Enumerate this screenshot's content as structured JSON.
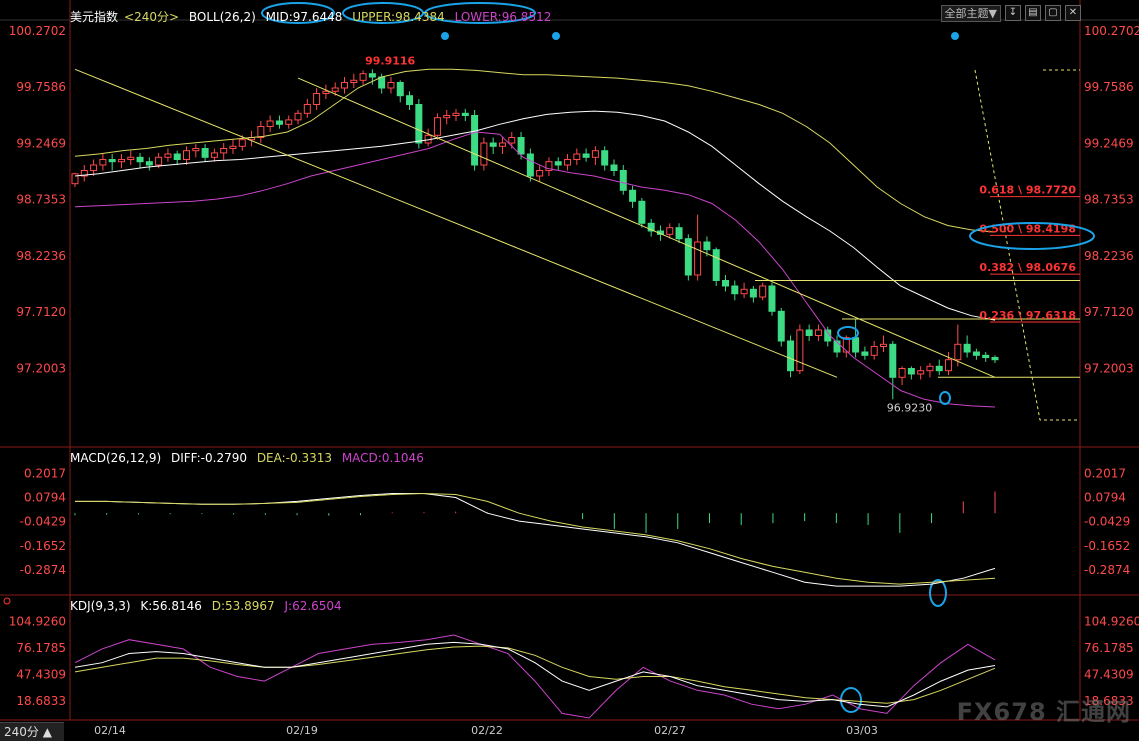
{
  "header": {
    "main": {
      "name": "美元指数",
      "period": "<240分>",
      "indicator": "BOLL(26,2)",
      "mid": "MID:97.6448",
      "upper": "UPPER:98.4384",
      "lower": "LOWER:96.8512"
    },
    "macd": {
      "name": "MACD(26,12,9)",
      "diff": "DIFF:-0.2790",
      "dea": "DEA:-0.3313",
      "macd": "MACD:0.1046"
    },
    "kdj": {
      "name": "KDJ(9,3,3)",
      "k": "K:56.8146",
      "d": "D:53.8967",
      "j": "J:62.6504"
    }
  },
  "toolbar": {
    "theme_label": "全部主题▼",
    "icons": [
      "↧",
      "▤",
      "▢",
      "✕"
    ]
  },
  "period_label": "240分 ▲",
  "watermark": "FX678 汇通网",
  "colors": {
    "up": "#ff4a4a",
    "down": "#3ddc84",
    "mid": "#ffffff",
    "upper": "#d8d860",
    "lower": "#cc44cc",
    "annot": "#ff3333",
    "ellipse": "#1aa3e8",
    "axis": "#ff4a4a",
    "grid": "#8b1a1a"
  },
  "chart_data": [
    {
      "type": "candlestick",
      "title": "美元指数 240分 BOLL(26,2)",
      "x_labels": [
        "02/14",
        "02/19",
        "02/22",
        "02/27",
        "03/03"
      ],
      "y_ticks": [
        "100.2702",
        "99.7586",
        "99.2469",
        "98.7353",
        "98.2236",
        "97.7120",
        "97.2003"
      ],
      "ylim": [
        96.55,
        100.35
      ],
      "candles": [
        [
          98.88,
          98.97,
          98.85,
          98.98
        ],
        [
          98.95,
          99.0,
          98.9,
          99.05
        ],
        [
          99.0,
          99.05,
          98.95,
          99.1
        ],
        [
          99.05,
          99.1,
          99.0,
          99.15
        ],
        [
          99.1,
          99.08,
          99.0,
          99.15
        ],
        [
          99.08,
          99.1,
          99.02,
          99.15
        ],
        [
          99.1,
          99.12,
          99.05,
          99.18
        ],
        [
          99.12,
          99.08,
          99.02,
          99.16
        ],
        [
          99.08,
          99.05,
          99.0,
          99.12
        ],
        [
          99.05,
          99.12,
          99.02,
          99.16
        ],
        [
          99.12,
          99.15,
          99.08,
          99.2
        ],
        [
          99.15,
          99.1,
          99.05,
          99.18
        ],
        [
          99.1,
          99.18,
          99.05,
          99.22
        ],
        [
          99.18,
          99.2,
          99.12,
          99.24
        ],
        [
          99.2,
          99.12,
          99.08,
          99.24
        ],
        [
          99.12,
          99.16,
          99.08,
          99.2
        ],
        [
          99.16,
          99.2,
          99.1,
          99.25
        ],
        [
          99.2,
          99.22,
          99.15,
          99.28
        ],
        [
          99.22,
          99.28,
          99.18,
          99.32
        ],
        [
          99.28,
          99.3,
          99.22,
          99.36
        ],
        [
          99.3,
          99.4,
          99.25,
          99.45
        ],
        [
          99.4,
          99.45,
          99.35,
          99.5
        ],
        [
          99.45,
          99.42,
          99.38,
          99.5
        ],
        [
          99.42,
          99.46,
          99.38,
          99.5
        ],
        [
          99.46,
          99.52,
          99.42,
          99.55
        ],
        [
          99.52,
          99.6,
          99.48,
          99.65
        ],
        [
          99.6,
          99.7,
          99.55,
          99.75
        ],
        [
          99.7,
          99.72,
          99.65,
          99.78
        ],
        [
          99.72,
          99.75,
          99.68,
          99.8
        ],
        [
          99.75,
          99.8,
          99.7,
          99.85
        ],
        [
          99.8,
          99.82,
          99.75,
          99.88
        ],
        [
          99.82,
          99.88,
          99.78,
          99.91
        ],
        [
          99.88,
          99.85,
          99.78,
          99.92
        ],
        [
          99.85,
          99.75,
          99.7,
          99.88
        ],
        [
          99.75,
          99.8,
          99.7,
          99.85
        ],
        [
          99.8,
          99.68,
          99.62,
          99.82
        ],
        [
          99.68,
          99.6,
          99.55,
          99.72
        ],
        [
          99.6,
          99.25,
          99.2,
          99.65
        ],
        [
          99.25,
          99.32,
          99.22,
          99.38
        ],
        [
          99.32,
          99.48,
          99.28,
          99.52
        ],
        [
          99.48,
          99.5,
          99.42,
          99.55
        ],
        [
          99.5,
          99.52,
          99.45,
          99.56
        ],
        [
          99.52,
          99.5,
          99.45,
          99.56
        ],
        [
          99.5,
          99.05,
          99.0,
          99.55
        ],
        [
          99.05,
          99.25,
          99.0,
          99.3
        ],
        [
          99.25,
          99.22,
          99.15,
          99.3
        ],
        [
          99.22,
          99.25,
          99.15,
          99.3
        ],
        [
          99.25,
          99.3,
          99.2,
          99.35
        ],
        [
          99.3,
          99.15,
          99.1,
          99.35
        ],
        [
          99.15,
          98.95,
          98.9,
          99.2
        ],
        [
          98.95,
          99.0,
          98.9,
          99.05
        ],
        [
          99.0,
          99.08,
          98.95,
          99.12
        ],
        [
          99.08,
          99.05,
          99.0,
          99.12
        ],
        [
          99.05,
          99.1,
          99.0,
          99.15
        ],
        [
          99.1,
          99.15,
          99.05,
          99.2
        ],
        [
          99.15,
          99.12,
          99.08,
          99.2
        ],
        [
          99.12,
          99.18,
          99.05,
          99.22
        ],
        [
          99.18,
          99.05,
          99.0,
          99.22
        ],
        [
          99.05,
          99.0,
          98.95,
          99.1
        ],
        [
          99.0,
          98.82,
          98.78,
          99.05
        ],
        [
          98.82,
          98.72,
          98.66,
          98.86
        ],
        [
          98.72,
          98.52,
          98.48,
          98.75
        ],
        [
          98.52,
          98.45,
          98.4,
          98.56
        ],
        [
          98.45,
          98.42,
          98.36,
          98.5
        ],
        [
          98.42,
          98.48,
          98.38,
          98.52
        ],
        [
          98.48,
          98.38,
          98.34,
          98.52
        ],
        [
          98.38,
          98.05,
          98.0,
          98.42
        ],
        [
          98.05,
          98.35,
          98.0,
          98.6
        ],
        [
          98.35,
          98.28,
          98.22,
          98.4
        ],
        [
          98.28,
          98.0,
          97.95,
          98.3
        ],
        [
          98.0,
          97.95,
          97.9,
          98.05
        ],
        [
          97.95,
          97.88,
          97.82,
          98.0
        ],
        [
          97.88,
          97.92,
          97.84,
          97.98
        ],
        [
          97.92,
          97.85,
          97.8,
          97.95
        ],
        [
          97.85,
          97.95,
          97.82,
          97.98
        ],
        [
          97.95,
          97.72,
          97.68,
          97.98
        ],
        [
          97.72,
          97.45,
          97.4,
          97.75
        ],
        [
          97.45,
          97.18,
          97.12,
          97.5
        ],
        [
          97.18,
          97.55,
          97.15,
          97.6
        ],
        [
          97.55,
          97.5,
          97.45,
          97.6
        ],
        [
          97.5,
          97.55,
          97.45,
          97.6
        ],
        [
          97.55,
          97.45,
          97.4,
          97.58
        ],
        [
          97.45,
          97.35,
          97.3,
          97.5
        ],
        [
          97.35,
          97.48,
          97.3,
          97.5
        ],
        [
          97.48,
          97.35,
          97.3,
          97.65
        ],
        [
          97.35,
          97.32,
          97.28,
          97.4
        ],
        [
          97.32,
          97.4,
          97.28,
          97.45
        ],
        [
          97.4,
          97.42,
          97.35,
          97.5
        ],
        [
          97.42,
          97.12,
          96.92,
          97.45
        ],
        [
          97.12,
          97.2,
          97.05,
          97.22
        ],
        [
          97.2,
          97.15,
          97.1,
          97.22
        ],
        [
          97.15,
          97.18,
          97.1,
          97.22
        ],
        [
          97.18,
          97.22,
          97.12,
          97.25
        ],
        [
          97.22,
          97.18,
          97.14,
          97.28
        ],
        [
          97.18,
          97.28,
          97.14,
          97.35
        ],
        [
          97.28,
          97.42,
          97.22,
          97.6
        ],
        [
          97.42,
          97.35,
          97.3,
          97.5
        ],
        [
          97.35,
          97.32,
          97.28,
          97.38
        ],
        [
          97.32,
          97.3,
          97.26,
          97.35
        ],
        [
          97.3,
          97.28,
          97.25,
          97.32
        ]
      ],
      "boll": {
        "mid": [
          98.95,
          98.97,
          99.0,
          99.03,
          99.05,
          99.07,
          99.09,
          99.1,
          99.12,
          99.14,
          99.16,
          99.18,
          99.2,
          99.22,
          99.25,
          99.28,
          99.32,
          99.36,
          99.42,
          99.47,
          99.51,
          99.53,
          99.54,
          99.53,
          99.5,
          99.45,
          99.35,
          99.22,
          99.05,
          98.88,
          98.72,
          98.58,
          98.45,
          98.3,
          98.12,
          97.95,
          97.85,
          97.75,
          97.68,
          97.64
        ],
        "upper": [
          99.13,
          99.15,
          99.18,
          99.2,
          99.23,
          99.25,
          99.27,
          99.29,
          99.31,
          99.35,
          99.45,
          99.6,
          99.75,
          99.85,
          99.9,
          99.92,
          99.92,
          99.91,
          99.89,
          99.87,
          99.87,
          99.86,
          99.85,
          99.84,
          99.82,
          99.8,
          99.77,
          99.72,
          99.66,
          99.6,
          99.52,
          99.4,
          99.25,
          99.05,
          98.85,
          98.7,
          98.58,
          98.5,
          98.46,
          98.44
        ],
        "lower": [
          98.67,
          98.68,
          98.69,
          98.7,
          98.71,
          98.72,
          98.74,
          98.77,
          98.82,
          98.88,
          98.95,
          99.0,
          99.05,
          99.1,
          99.15,
          99.2,
          99.28,
          99.35,
          99.33,
          99.12,
          99.02,
          98.98,
          98.95,
          98.9,
          98.85,
          98.82,
          98.78,
          98.7,
          98.55,
          98.35,
          98.1,
          97.8,
          97.5,
          97.3,
          97.15,
          97.0,
          96.92,
          96.88,
          96.86,
          96.85
        ]
      },
      "channel_lines": [
        [
          [
            0,
            99.92
          ],
          [
            82,
            97.12
          ]
        ],
        [
          [
            24,
            99.84
          ],
          [
            99,
            97.12
          ]
        ]
      ],
      "fib_levels": [
        {
          "label": "0.618 \\ 98.7720",
          "value": 98.772
        },
        {
          "label": "0.500 \\ 98.4198",
          "value": 98.4198
        },
        {
          "label": "0.382 \\ 98.0676",
          "value": 98.0676
        },
        {
          "label": "0.236 \\ 97.6318",
          "value": 97.6318
        }
      ],
      "horizontal_lines": [
        98.0,
        97.65,
        97.12
      ],
      "annotations": [
        "99.9116",
        "96.9230"
      ]
    },
    {
      "type": "macd",
      "title": "MACD(26,12,9)",
      "y_ticks": [
        "0.2017",
        "0.0794",
        "-0.0429",
        "-0.1652",
        "-0.2874"
      ],
      "ylim": [
        -0.4,
        0.26
      ],
      "diff": [
        0.06,
        0.06,
        0.055,
        0.05,
        0.045,
        0.045,
        0.05,
        0.06,
        0.075,
        0.09,
        0.1,
        0.1,
        0.08,
        0.0,
        -0.04,
        -0.06,
        -0.08,
        -0.1,
        -0.12,
        -0.15,
        -0.2,
        -0.25,
        -0.3,
        -0.35,
        -0.37,
        -0.37,
        -0.37,
        -0.36,
        -0.33,
        -0.28
      ],
      "dea": [
        0.06,
        0.06,
        0.055,
        0.05,
        0.045,
        0.045,
        0.05,
        0.055,
        0.07,
        0.085,
        0.095,
        0.1,
        0.095,
        0.06,
        0.0,
        -0.04,
        -0.07,
        -0.09,
        -0.11,
        -0.14,
        -0.18,
        -0.23,
        -0.27,
        -0.3,
        -0.33,
        -0.35,
        -0.36,
        -0.35,
        -0.34,
        -0.33
      ],
      "hist": [
        -0.01,
        -0.008,
        -0.006,
        -0.005,
        -0.004,
        -0.006,
        -0.008,
        -0.01,
        -0.012,
        -0.01,
        0.004,
        0.005,
        0.008,
        0.005,
        0.002,
        0.0,
        -0.03,
        -0.08,
        -0.1,
        -0.08,
        -0.05,
        -0.06,
        -0.05,
        -0.04,
        -0.05,
        -0.06,
        -0.1,
        -0.05,
        0.06,
        0.11
      ]
    },
    {
      "type": "kdj",
      "title": "KDJ(9,3,3)",
      "y_ticks": [
        "104.9260",
        "76.1785",
        "47.4309",
        "18.6833"
      ],
      "ylim": [
        0,
        115
      ],
      "k": [
        55,
        60,
        70,
        72,
        70,
        65,
        60,
        55,
        55,
        60,
        65,
        70,
        75,
        80,
        82,
        80,
        75,
        60,
        40,
        30,
        40,
        50,
        45,
        35,
        30,
        25,
        20,
        18,
        20,
        15,
        12,
        25,
        40,
        52,
        57
      ],
      "d": [
        50,
        55,
        60,
        65,
        65,
        62,
        58,
        55,
        55,
        58,
        62,
        66,
        70,
        74,
        77,
        78,
        76,
        68,
        55,
        45,
        42,
        45,
        45,
        40,
        34,
        30,
        26,
        22,
        20,
        18,
        16,
        20,
        30,
        42,
        54
      ],
      "j": [
        60,
        75,
        85,
        80,
        75,
        55,
        45,
        40,
        55,
        70,
        75,
        80,
        82,
        85,
        90,
        80,
        70,
        40,
        5,
        0,
        30,
        55,
        40,
        30,
        25,
        15,
        10,
        15,
        25,
        10,
        5,
        35,
        60,
        80,
        63
      ]
    }
  ]
}
